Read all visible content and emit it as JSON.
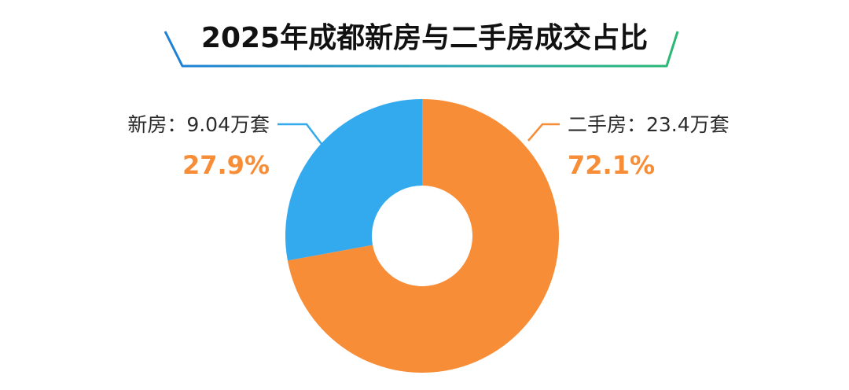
{
  "colors": {
    "new_house": "#33A9EE",
    "second_hand": "#F88D37",
    "title_line_left": "#1E7FD6",
    "title_line_right": "#2BB873",
    "title_text": "#111111"
  },
  "chart_data": {
    "type": "pie",
    "style": "donut",
    "title": "2025年成都新房与二手房成交占比",
    "slices": [
      {
        "name": "新房",
        "label": "新房：9.04万套",
        "value": 9.04,
        "unit": "万套",
        "percent_label": "27.9%",
        "percent": 27.9
      },
      {
        "name": "二手房",
        "label": "二手房：23.4万套",
        "value": 23.4,
        "unit": "万套",
        "percent_label": "72.1%",
        "percent": 72.1
      }
    ]
  }
}
